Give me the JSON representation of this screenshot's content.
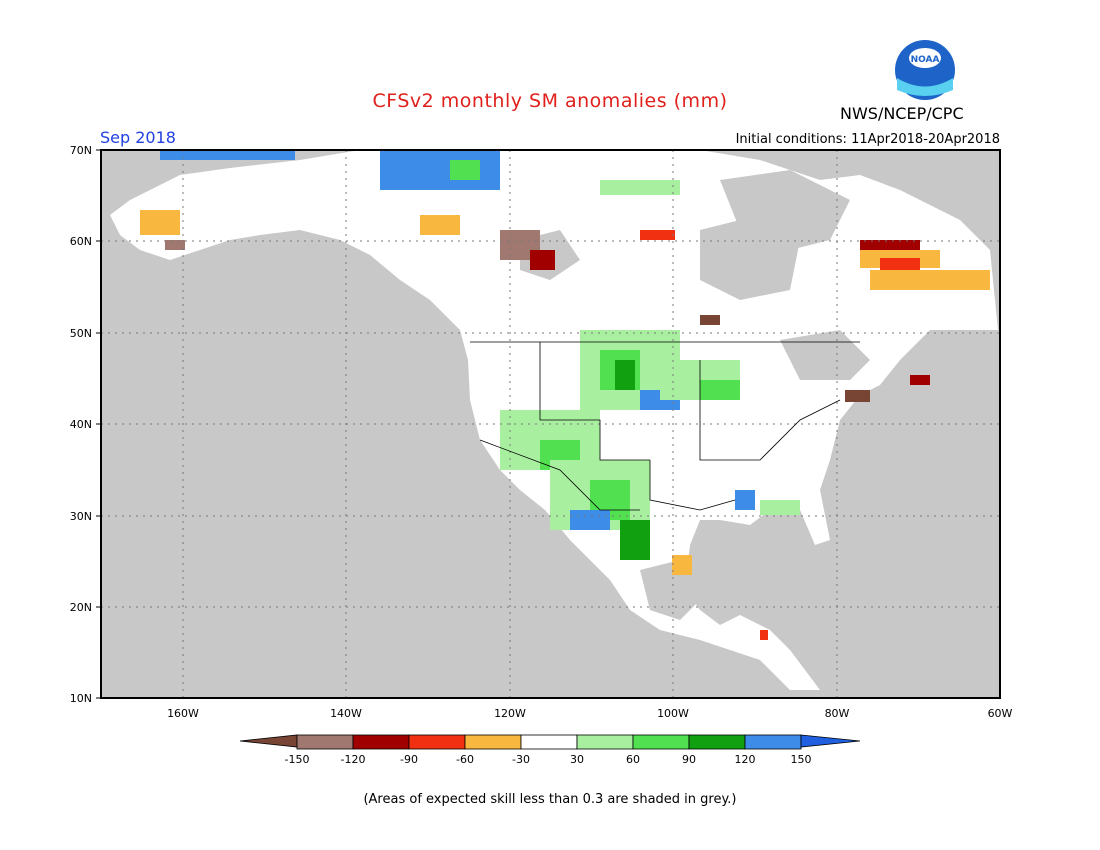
{
  "header": {
    "title": "CFSv2 monthly SM anomalies (mm)",
    "agency": "NWS/NCEP/CPC",
    "logo_text": "NOAA",
    "valid_month": "Sep 2018",
    "initial_conditions": "Initial conditions: 11Apr2018-20Apr2018"
  },
  "map": {
    "lat_labels": [
      "70N",
      "60N",
      "50N",
      "40N",
      "30N",
      "20N",
      "10N"
    ],
    "lon_labels": [
      "160W",
      "140W",
      "120W",
      "100W",
      "80W",
      "60W"
    ],
    "grey_color": "#c8c8c8",
    "land_color": "#ffffff"
  },
  "legend": {
    "tick_labels": [
      "-150",
      "-120",
      "-90",
      "-60",
      "-30",
      "30",
      "60",
      "90",
      "120",
      "150"
    ],
    "colors": [
      "#784434",
      "#a07870",
      "#a00000",
      "#f03010",
      "#f8b840",
      "#ffffff",
      "#a8f0a0",
      "#50e050",
      "#10a010",
      "#3c8ce8",
      "#2060e0"
    ]
  },
  "footnote": "(Areas of expected skill less than 0.3 are shaded in grey.)"
}
